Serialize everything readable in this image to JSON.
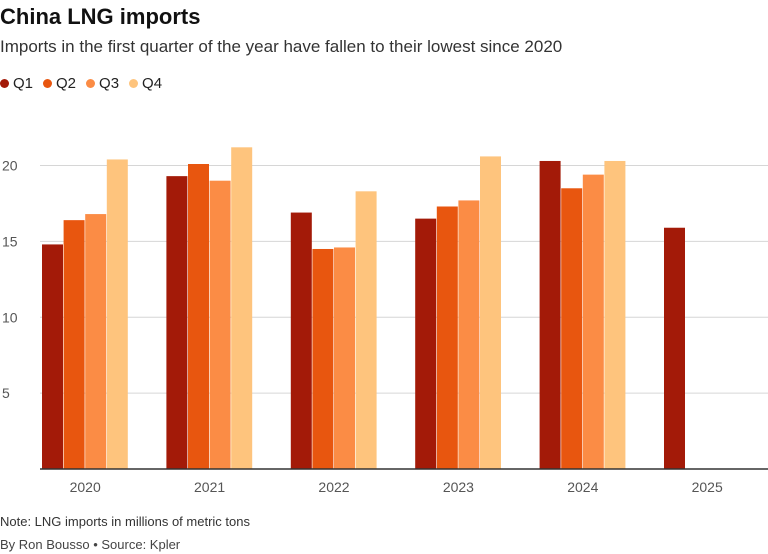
{
  "title": "China LNG imports",
  "subtitle": "Imports in the first quarter of the year have fallen to their lowest since 2020",
  "note": "Note: LNG imports in millions of metric tons",
  "credit": "By Ron Bousso • Source: Kpler",
  "chart_data": {
    "type": "bar",
    "categories": [
      "2020",
      "2021",
      "2022",
      "2023",
      "2024",
      "2025"
    ],
    "series": [
      {
        "name": "Q1",
        "color": "#a31a08",
        "values": [
          14.8,
          19.3,
          16.9,
          16.5,
          20.3,
          15.9
        ]
      },
      {
        "name": "Q2",
        "color": "#e8560f",
        "values": [
          16.4,
          20.1,
          14.5,
          17.3,
          18.5,
          null
        ]
      },
      {
        "name": "Q3",
        "color": "#fb8c45",
        "values": [
          16.8,
          19.0,
          14.6,
          17.7,
          19.4,
          null
        ]
      },
      {
        "name": "Q4",
        "color": "#fec47d",
        "values": [
          20.4,
          21.2,
          18.3,
          20.6,
          20.3,
          null
        ]
      }
    ],
    "yticks": [
      5,
      10,
      15,
      20
    ],
    "ylim": [
      0,
      23
    ],
    "grid": true,
    "legend_position": "top-left"
  }
}
